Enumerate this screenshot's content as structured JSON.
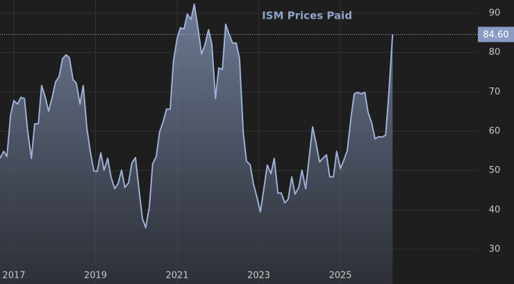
{
  "chart_data": {
    "type": "area",
    "title": "ISM Prices Paid",
    "x": [
      2016.66,
      2016.75,
      2016.83,
      2016.92,
      2017.0,
      2017.09,
      2017.17,
      2017.26,
      2017.34,
      2017.43,
      2017.51,
      2017.6,
      2017.68,
      2017.77,
      2017.85,
      2017.94,
      2018.02,
      2018.11,
      2018.19,
      2018.28,
      2018.36,
      2018.45,
      2018.53,
      2018.62,
      2018.7,
      2018.79,
      2018.87,
      2018.96,
      2019.04,
      2019.13,
      2019.21,
      2019.3,
      2019.38,
      2019.47,
      2019.55,
      2019.64,
      2019.72,
      2019.81,
      2019.89,
      2019.98,
      2020.06,
      2020.15,
      2020.23,
      2020.32,
      2020.4,
      2020.49,
      2020.57,
      2020.66,
      2020.74,
      2020.83,
      2020.91,
      2021.0,
      2021.08,
      2021.17,
      2021.25,
      2021.34,
      2021.42,
      2021.51,
      2021.6,
      2021.68,
      2021.77,
      2021.85,
      2021.94,
      2022.02,
      2022.11,
      2022.19,
      2022.28,
      2022.36,
      2022.45,
      2022.53,
      2022.62,
      2022.7,
      2022.79,
      2022.87,
      2022.96,
      2023.04,
      2023.13,
      2023.21,
      2023.3,
      2023.38,
      2023.47,
      2023.55,
      2023.64,
      2023.72,
      2023.81,
      2023.89,
      2023.98,
      2024.06,
      2024.15,
      2024.23,
      2024.32,
      2024.4,
      2024.49,
      2024.57,
      2024.66,
      2024.74,
      2024.83,
      2024.91,
      2025.0,
      2025.09,
      2025.17,
      2025.26,
      2025.34,
      2025.43,
      2025.51,
      2025.6,
      2025.68,
      2025.77,
      2025.85,
      2025.94,
      2026.02,
      2026.11,
      2026.19,
      2026.28
    ],
    "values": [
      53.1,
      54.9,
      53.6,
      64.2,
      67.8,
      66.9,
      68.6,
      68.3,
      59.8,
      53.1,
      61.9,
      61.9,
      71.6,
      68.6,
      65.1,
      68.6,
      72.5,
      73.9,
      78.4,
      79.4,
      78.7,
      73.1,
      72.2,
      66.9,
      71.6,
      60.7,
      55.0,
      49.9,
      49.8,
      54.5,
      50.1,
      53.1,
      48.4,
      45.4,
      46.6,
      50.1,
      45.7,
      46.9,
      51.9,
      53.3,
      45.7,
      37.8,
      35.5,
      40.8,
      51.7,
      53.6,
      59.8,
      62.5,
      65.6,
      65.6,
      77.8,
      83.6,
      86.3,
      86.0,
      89.8,
      88.4,
      92.3,
      86.3,
      79.6,
      81.9,
      85.8,
      82.2,
      68.3,
      76.1,
      75.7,
      87.2,
      84.5,
      82.4,
      82.4,
      78.4,
      59.8,
      52.4,
      51.5,
      46.6,
      43.1,
      39.5,
      45.7,
      51.4,
      49.2,
      53.1,
      44.3,
      44.3,
      41.8,
      42.7,
      48.4,
      44.0,
      45.7,
      50.1,
      45.4,
      52.8,
      61.1,
      57.2,
      52.2,
      53.1,
      54.0,
      48.4,
      48.4,
      54.9,
      50.5,
      52.8,
      55.1,
      63.4,
      69.5,
      69.9,
      69.5,
      69.9,
      64.8,
      62.0,
      58.1,
      58.6,
      58.5,
      59.0,
      70.0,
      84.6
    ],
    "value_labels": [
      null,
      null,
      null,
      null,
      null,
      null,
      null,
      null,
      null,
      null,
      null,
      null,
      null,
      null,
      null,
      null,
      null,
      null,
      null,
      null,
      null,
      null,
      null,
      null,
      null,
      null,
      null,
      null,
      null,
      null,
      null,
      null,
      null,
      null,
      null,
      null,
      null,
      null,
      null,
      null,
      null,
      null,
      null,
      null,
      null,
      null,
      null,
      null,
      null,
      null,
      null,
      null,
      null,
      null,
      null,
      null,
      null,
      null,
      null,
      null,
      null,
      null,
      null,
      null,
      null,
      null,
      null,
      null,
      null,
      null,
      null,
      null,
      null,
      null,
      null,
      null,
      null,
      null,
      null,
      null,
      null,
      null,
      null,
      null,
      null,
      null,
      null,
      null,
      null,
      null,
      null,
      null,
      null,
      null,
      null,
      null,
      null,
      null,
      null,
      null,
      null,
      null,
      null,
      null,
      null,
      null,
      null,
      null,
      null,
      null,
      null,
      null,
      null,
      "84.60"
    ],
    "color": "#9db1d8",
    "xlim": [
      2016.66,
      2028.37
    ],
    "xticks": [
      2017,
      2019,
      2021,
      2023,
      2025
    ],
    "ylim": [
      21.18,
      93.35
    ],
    "yticks": [
      30,
      40,
      50,
      60,
      70,
      80,
      90
    ],
    "grid": true
  }
}
